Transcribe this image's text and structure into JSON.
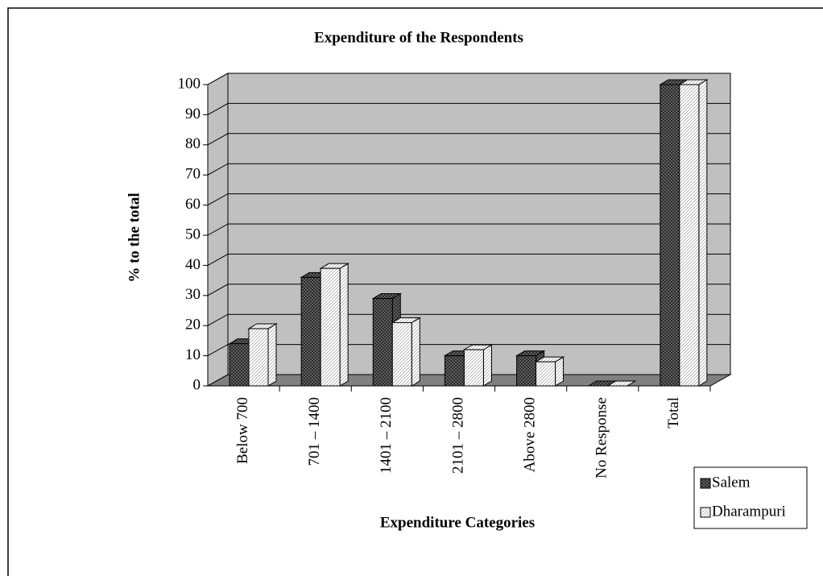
{
  "chart_data": {
    "type": "bar3d",
    "title": "Expenditure of the Respondents",
    "x_label": "Expenditure Categories",
    "y_label": "% to the total",
    "categories": [
      "Below 700",
      "701 – 1400",
      "1401 – 2100",
      "2101 – 2800",
      "Above 2800",
      "No Response",
      "Total"
    ],
    "series": [
      {
        "name": "Salem",
        "color": "#6e6e6e",
        "values": [
          14,
          36,
          29,
          10,
          10,
          0,
          100
        ]
      },
      {
        "name": "Dharampuri",
        "color": "#ffffff",
        "values": [
          19,
          39,
          21,
          12,
          8,
          0,
          100
        ]
      }
    ],
    "ylim": [
      0,
      100
    ],
    "yticks": [
      0,
      10,
      20,
      30,
      40,
      50,
      60,
      70,
      80,
      90,
      100
    ],
    "grid": true,
    "legend": "bottom-right"
  }
}
